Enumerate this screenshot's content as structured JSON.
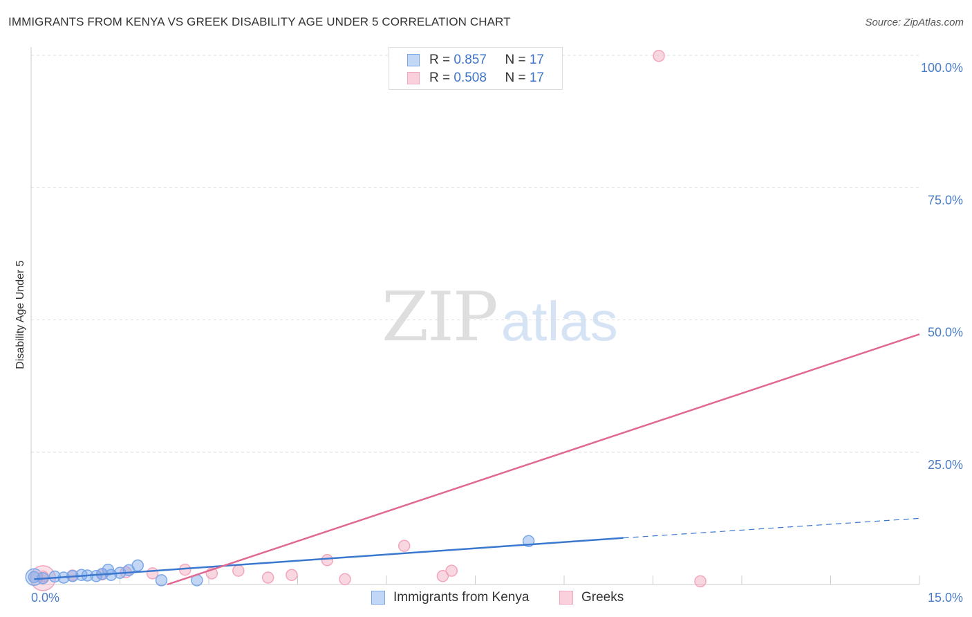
{
  "title": "IMMIGRANTS FROM KENYA VS GREEK DISABILITY AGE UNDER 5 CORRELATION CHART",
  "source": "Source: ZipAtlas.com",
  "watermark": {
    "zip": "ZIP",
    "atlas": "atlas"
  },
  "legend_top": {
    "rows": [
      {
        "r_label": "R = ",
        "r_value": "0.857",
        "n_label": "N = ",
        "n_value": "17"
      },
      {
        "r_label": "R = ",
        "r_value": "0.508",
        "n_label": "N = ",
        "n_value": "17"
      }
    ]
  },
  "legend_bottom": [
    "Immigrants from Kenya",
    "Greeks"
  ],
  "chart_data": {
    "type": "scatter",
    "title": "IMMIGRANTS FROM KENYA VS GREEK DISABILITY AGE UNDER 5 CORRELATION CHART",
    "xlabel": "",
    "ylabel": "Disability Age Under 5",
    "xlim": [
      0,
      15
    ],
    "ylim": [
      0,
      100
    ],
    "x_tick_labels": [
      "0.0%",
      "15.0%"
    ],
    "y_ticks": [
      25,
      50,
      75,
      100
    ],
    "y_tick_labels": [
      "25.0%",
      "50.0%",
      "75.0%",
      "100.0%"
    ],
    "grid": true,
    "legend_position": "top-center",
    "colors": {
      "kenya": "#7aa7e8",
      "greeks": "#f2a6bd",
      "kenya_line": "#3a78d0",
      "greeks_line": "#e06892"
    },
    "series": [
      {
        "name": "Immigrants from Kenya",
        "r": 0.857,
        "n": 17,
        "points": [
          [
            0.05,
            1.4
          ],
          [
            0.2,
            1.2
          ],
          [
            0.4,
            1.5
          ],
          [
            0.55,
            1.3
          ],
          [
            0.7,
            1.6
          ],
          [
            0.85,
            1.8
          ],
          [
            0.95,
            1.7
          ],
          [
            1.1,
            1.6
          ],
          [
            1.2,
            2.0
          ],
          [
            1.3,
            2.8
          ],
          [
            1.35,
            1.8
          ],
          [
            1.5,
            2.2
          ],
          [
            1.65,
            2.7
          ],
          [
            1.8,
            3.6
          ],
          [
            2.2,
            0.8
          ],
          [
            2.8,
            0.8
          ],
          [
            8.4,
            8.2
          ]
        ],
        "trend": {
          "x0": 0.05,
          "y0": 1.0,
          "x1": 10.0,
          "y1": 8.8,
          "dashed_to_x": 15.0,
          "dashed_to_y": 12.5
        }
      },
      {
        "name": "Greeks",
        "r": 0.508,
        "n": 17,
        "points": [
          [
            0.2,
            1.5
          ],
          [
            0.7,
            1.7
          ],
          [
            1.2,
            1.9
          ],
          [
            1.6,
            2.3
          ],
          [
            2.05,
            2.1
          ],
          [
            2.6,
            2.8
          ],
          [
            3.05,
            2.1
          ],
          [
            3.5,
            2.6
          ],
          [
            4.0,
            1.3
          ],
          [
            4.4,
            1.8
          ],
          [
            5.0,
            4.6
          ],
          [
            5.3,
            1.0
          ],
          [
            6.3,
            7.3
          ],
          [
            6.95,
            1.6
          ],
          [
            7.1,
            2.6
          ],
          [
            10.6,
            99.9
          ],
          [
            11.3,
            0.6
          ]
        ],
        "trend": {
          "x0": 2.3,
          "y0": 0.0,
          "x1": 15.0,
          "y1": 47.3
        }
      }
    ]
  }
}
